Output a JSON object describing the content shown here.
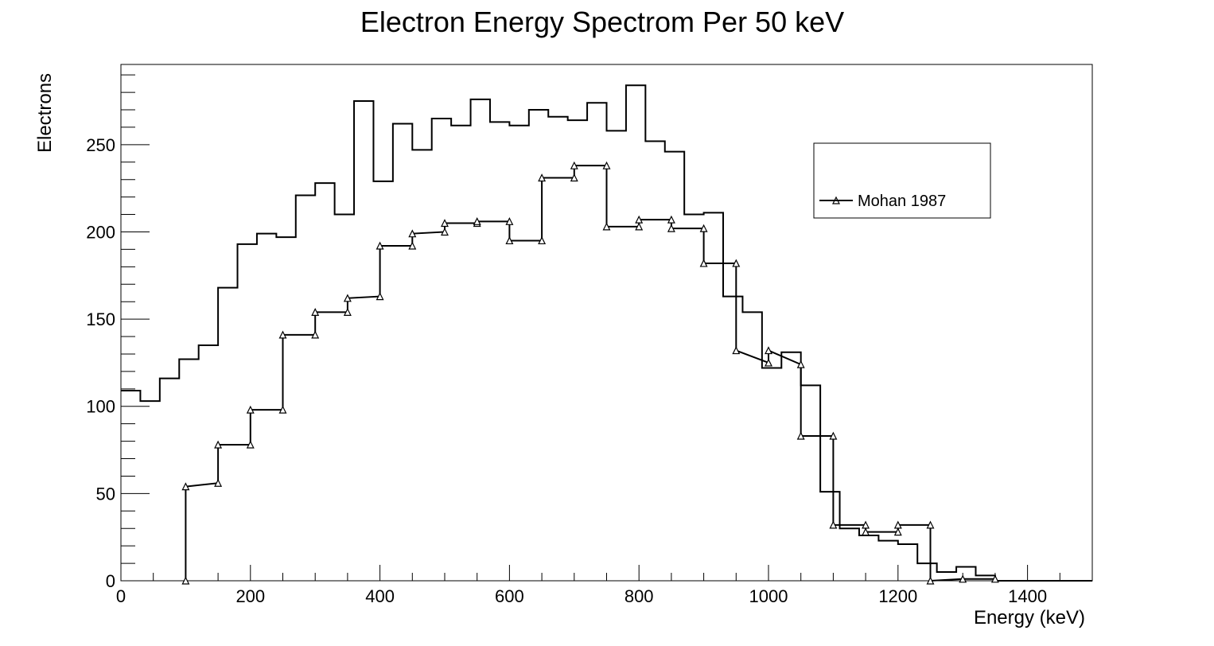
{
  "chart_data": {
    "type": "line",
    "title": "Electron Energy Spectrom Per 50 keV",
    "xlabel": "Energy (keV)",
    "ylabel": "Electrons",
    "xlim": [
      0,
      1500
    ],
    "ylim": [
      0,
      296
    ],
    "x_ticks": [
      0,
      200,
      400,
      600,
      800,
      1000,
      1200,
      1400
    ],
    "y_ticks": [
      0,
      50,
      100,
      150,
      200,
      250
    ],
    "grid": false,
    "legend_position": "top-right",
    "series": [
      {
        "style": "histogram",
        "bin_width": 30,
        "x_start": 0,
        "values": [
          109,
          103,
          116,
          127,
          135,
          168,
          193,
          199,
          197,
          221,
          228,
          210,
          275,
          229,
          262,
          247,
          265,
          261,
          276,
          263,
          261,
          270,
          266,
          264,
          274,
          258,
          284,
          252,
          246,
          210,
          211,
          163,
          154,
          122,
          131,
          112,
          51,
          30,
          26,
          23,
          21,
          10,
          5,
          8,
          3,
          0,
          0,
          0,
          0,
          0
        ]
      },
      {
        "name": "Mohan 1987",
        "style": "step-markers",
        "marker": "triangle",
        "x": [
          100,
          100,
          150,
          150,
          200,
          200,
          250,
          250,
          300,
          300,
          350,
          350,
          400,
          400,
          450,
          450,
          500,
          500,
          550,
          550,
          600,
          600,
          650,
          650,
          700,
          700,
          750,
          750,
          800,
          800,
          850,
          850,
          900,
          900,
          950,
          950,
          1000,
          1000,
          1050,
          1050,
          1100,
          1100,
          1150,
          1150,
          1200,
          1200,
          1250,
          1250,
          1300,
          1350
        ],
        "y": [
          0,
          54,
          56,
          78,
          78,
          98,
          98,
          141,
          141,
          154,
          154,
          162,
          163,
          192,
          192,
          199,
          200,
          205,
          205,
          206,
          206,
          195,
          195,
          231,
          231,
          238,
          238,
          203,
          203,
          207,
          207,
          202,
          202,
          182,
          182,
          132,
          125,
          132,
          124,
          83,
          83,
          32,
          32,
          28,
          28,
          32,
          32,
          0,
          1,
          1
        ]
      }
    ],
    "legend": [
      {
        "label": "Mohan 1987",
        "marker": "triangle"
      }
    ]
  }
}
